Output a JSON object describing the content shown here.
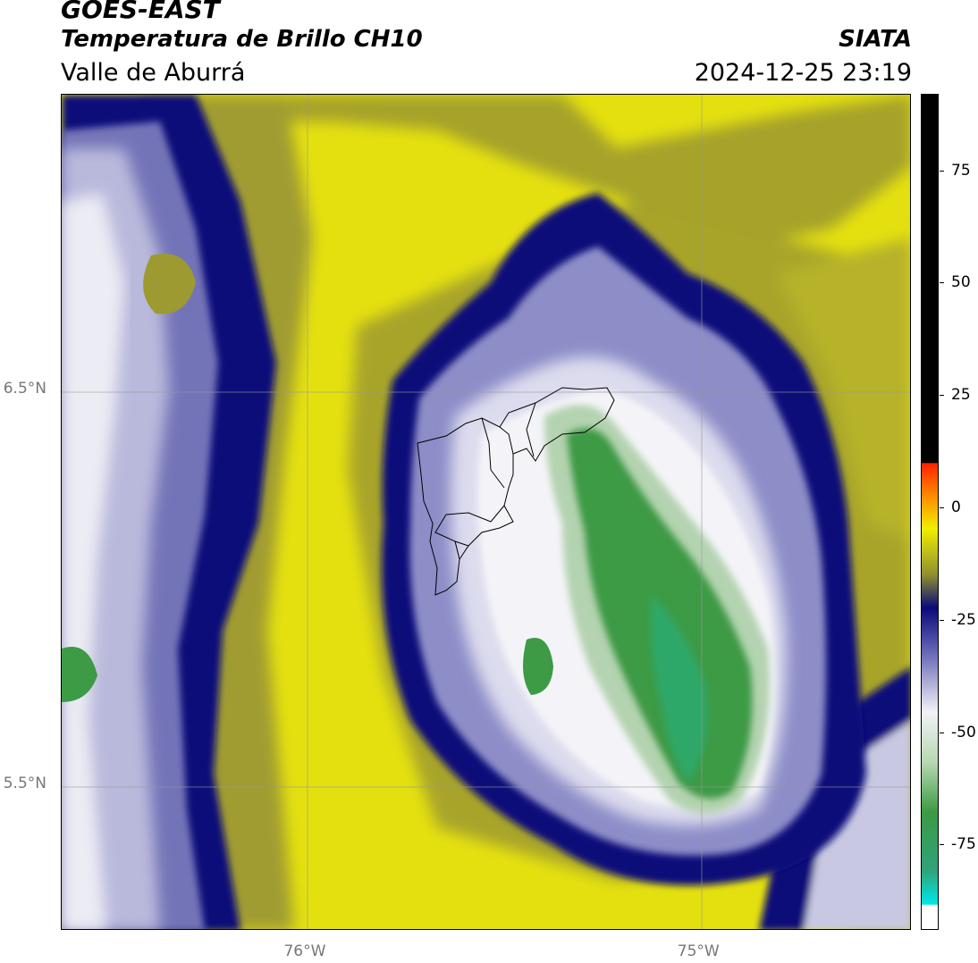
{
  "header": {
    "satellite": "GOES-EAST",
    "product": "Temperatura de Brillo CH10",
    "region": "Valle de Aburrá",
    "organization": "SIATA",
    "timestamp": "2024-12-25 23:19"
  },
  "map": {
    "lat_labels": [
      {
        "value": 6.5,
        "label": "6.5°N"
      },
      {
        "value": 5.5,
        "label": "5.5°N"
      }
    ],
    "lon_labels": [
      {
        "value": -76,
        "label": "76°W"
      },
      {
        "value": -75,
        "label": "75°W"
      }
    ],
    "lon_range": [
      -76.62,
      -74.46
    ],
    "lat_range": [
      5.13,
      7.25
    ]
  },
  "colorbar": {
    "ticks": [
      {
        "value": 75,
        "label": "75"
      },
      {
        "value": 50,
        "label": "50"
      },
      {
        "value": 25,
        "label": "25"
      },
      {
        "value": 0,
        "label": "0"
      },
      {
        "value": -25,
        "label": "-25"
      },
      {
        "value": -50,
        "label": "-50"
      },
      {
        "value": -75,
        "label": "-75"
      }
    ],
    "range": [
      -94,
      92
    ]
  },
  "colors": {
    "warm_yellow": "#e4e010",
    "olive": "#9c9a30",
    "navy": "#10107a",
    "lavender": "#8d8dc8",
    "white": "#f4f4f8",
    "green": "#3d9a45"
  }
}
